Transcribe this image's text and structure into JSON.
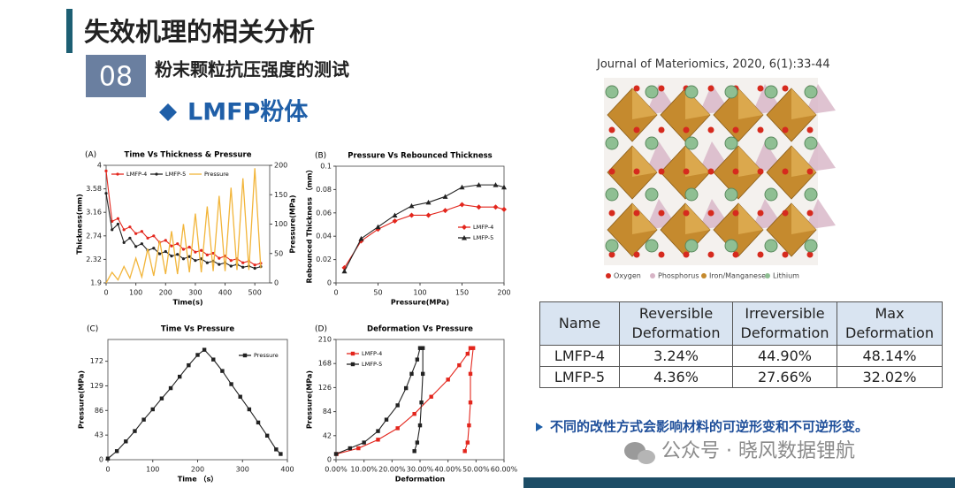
{
  "header": {
    "title": "失效机理的相关分析",
    "section_number": "08",
    "section_title": "粉末颗粒抗压强度的测试",
    "heading": "LMFP粉体"
  },
  "chart_data": [
    {
      "type": "line",
      "panel_label": "(A)",
      "title": "Time Vs Thickness & Pressure",
      "x_label": "Time(s)",
      "y_label": "Thickness(mm)",
      "y2_label": "Pressure(MPa)",
      "x": [
        0,
        20,
        40,
        60,
        80,
        100,
        120,
        140,
        160,
        180,
        200,
        220,
        240,
        260,
        280,
        300,
        320,
        340,
        360,
        380,
        400,
        420,
        440,
        460,
        480,
        500,
        520
      ],
      "series": [
        {
          "name": "LMFP-4",
          "color": "#e3261d",
          "marker": "circle",
          "values": [
            3.9,
            3.0,
            3.05,
            2.85,
            2.9,
            2.78,
            2.82,
            2.7,
            2.74,
            2.62,
            2.66,
            2.56,
            2.6,
            2.5,
            2.54,
            2.45,
            2.48,
            2.4,
            2.43,
            2.34,
            2.38,
            2.3,
            2.33,
            2.26,
            2.29,
            2.22,
            2.25
          ]
        },
        {
          "name": "LMFP-5",
          "color": "#222222",
          "marker": "circle",
          "values": [
            3.5,
            2.85,
            2.95,
            2.62,
            2.7,
            2.55,
            2.6,
            2.48,
            2.52,
            2.42,
            2.46,
            2.38,
            2.41,
            2.33,
            2.37,
            2.3,
            2.33,
            2.26,
            2.29,
            2.23,
            2.26,
            2.2,
            2.23,
            2.18,
            2.2,
            2.16,
            2.19
          ]
        },
        {
          "name": "Pressure",
          "color": "#f2b53a",
          "marker": "none",
          "axis": "y2",
          "values": [
            0,
            18,
            5,
            28,
            8,
            42,
            10,
            58,
            12,
            72,
            15,
            88,
            15,
            100,
            18,
            118,
            18,
            130,
            20,
            148,
            20,
            162,
            22,
            178,
            22,
            195,
            25
          ]
        }
      ],
      "xlim": [
        0,
        550
      ],
      "xticks": [
        0,
        100,
        200,
        300,
        400,
        500
      ],
      "ylim": [
        1.9,
        4
      ],
      "yticks": [
        1.9,
        2.32,
        2.74,
        3.16,
        3.58,
        4
      ],
      "y2lim": [
        0,
        200
      ],
      "y2ticks": [
        0,
        50,
        100,
        150,
        200
      ],
      "legend": "top-left"
    },
    {
      "type": "line",
      "panel_label": "(B)",
      "title": "Pressure Vs Rebounced Thickness",
      "x_label": "Pressure(MPa)",
      "y_label": "Rebounced Thickness （mm）",
      "x": [
        10,
        30,
        50,
        70,
        90,
        110,
        130,
        150,
        170,
        190,
        200
      ],
      "series": [
        {
          "name": "LMFP-4",
          "color": "#e3261d",
          "marker": "diamond",
          "values": [
            0.013,
            0.036,
            0.046,
            0.053,
            0.058,
            0.058,
            0.062,
            0.067,
            0.065,
            0.065,
            0.063
          ]
        },
        {
          "name": "LMFP-5",
          "color": "#222222",
          "marker": "triangle",
          "values": [
            0.01,
            0.038,
            0.048,
            0.058,
            0.066,
            0.069,
            0.074,
            0.082,
            0.084,
            0.084,
            0.082
          ]
        }
      ],
      "xlim": [
        0,
        200
      ],
      "xticks": [
        0,
        50,
        100,
        150,
        200
      ],
      "ylim": [
        0,
        0.1
      ],
      "yticks": [
        0,
        0.02,
        0.04,
        0.06,
        0.08,
        0.1
      ],
      "legend": "right"
    },
    {
      "type": "line",
      "panel_label": "(C)",
      "title": "Time Vs Pressure",
      "x_label": "Time （s）",
      "y_label": "Pressure(MPa)",
      "x": [
        0,
        20,
        40,
        60,
        80,
        100,
        120,
        140,
        160,
        180,
        200,
        215,
        235,
        255,
        275,
        295,
        315,
        335,
        355,
        375,
        385
      ],
      "series": [
        {
          "name": "Pressure",
          "color": "#222222",
          "marker": "square",
          "values": [
            2,
            15,
            32,
            50,
            70,
            88,
            107,
            125,
            145,
            165,
            183,
            192,
            175,
            155,
            132,
            110,
            88,
            65,
            42,
            18,
            10
          ]
        }
      ],
      "xlim": [
        0,
        400
      ],
      "xticks": [
        0,
        100,
        200,
        300,
        400
      ],
      "ylim": [
        0,
        210
      ],
      "yticks": [
        0,
        43,
        86,
        129,
        172
      ],
      "legend": "top-right"
    },
    {
      "type": "line",
      "panel_label": "(D)",
      "title": "Deformation Vs Pressure",
      "x_label": "Deformation",
      "y_label": "Pressure(MPa)",
      "series": [
        {
          "name": "LMFP-4",
          "color": "#e3261d",
          "marker": "square",
          "x": [
            0.002,
            0.08,
            0.15,
            0.22,
            0.28,
            0.34,
            0.4,
            0.44,
            0.47,
            0.48,
            0.49,
            0.48,
            0.48,
            0.475,
            0.47,
            0.46
          ],
          "values": [
            10,
            20,
            35,
            55,
            80,
            110,
            140,
            165,
            185,
            195,
            195,
            150,
            100,
            60,
            30,
            15
          ]
        },
        {
          "name": "LMFP-5",
          "color": "#222222",
          "marker": "square",
          "x": [
            0.0,
            0.05,
            0.1,
            0.15,
            0.18,
            0.22,
            0.25,
            0.27,
            0.29,
            0.3,
            0.31,
            0.31,
            0.305,
            0.3,
            0.29,
            0.28
          ],
          "values": [
            10,
            20,
            30,
            50,
            70,
            95,
            125,
            150,
            175,
            195,
            195,
            150,
            100,
            60,
            30,
            15
          ]
        }
      ],
      "xlim": [
        0,
        0.6
      ],
      "xticks": [
        {
          "value": 0,
          "label": "0.00%"
        },
        {
          "value": 0.1,
          "label": "10.00%"
        },
        {
          "value": 0.2,
          "label": "20.00%"
        },
        {
          "value": 0.3,
          "label": "30.00%"
        },
        {
          "value": 0.4,
          "label": "40.00%"
        },
        {
          "value": 0.5,
          "label": "50.00%"
        },
        {
          "value": 0.6,
          "label": "60.00%"
        }
      ],
      "ylim": [
        0,
        210
      ],
      "yticks": [
        0,
        42,
        84,
        126,
        168,
        210
      ],
      "legend": "top-left"
    }
  ],
  "figure": {
    "citation": "Journal of Materiomics, 2020, 6(1):33-44",
    "legend": [
      "Oxygen",
      "Phosphorus",
      "Iron/Manganese",
      "Lithium"
    ]
  },
  "table": {
    "header": [
      "Name",
      "Reversible Deformation",
      "Irreversible Deformation",
      "Max Deformation"
    ],
    "rows": [
      [
        "LMFP-4",
        "3.24%",
        "44.90%",
        "48.14%"
      ],
      [
        "LMFP-5",
        "4.36%",
        "27.66%",
        "32.02%"
      ]
    ]
  },
  "note": "不同的改性方式会影响材料的可逆形变和不可逆形变。",
  "watermark": "公众号 · 晓风数据锂航"
}
